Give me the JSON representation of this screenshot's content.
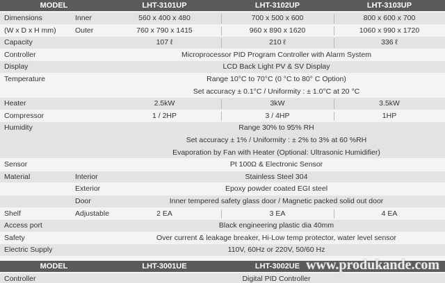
{
  "table": {
    "header": [
      "MODEL",
      "LHT-3101UP",
      "LHT-3102UP",
      "LHT-3103UP"
    ],
    "rows": [
      {
        "label": "Dimensions",
        "sub": "Inner",
        "cells": [
          "560 x 400 x 480",
          "700 x 500 x 600",
          "800 x 600 x 700"
        ]
      },
      {
        "label": "(W x D x H mm)",
        "sub": "Outer",
        "cells": [
          "760 x 790 x 1415",
          "960 x 890 x 1620",
          "1060 x 990 x 1720"
        ]
      },
      {
        "label": "Capacity",
        "cells": [
          "107 ℓ",
          "210 ℓ",
          "336 ℓ"
        ]
      },
      {
        "label": "Controller",
        "lines": [
          "Microprocessor PID Program Controller with Alarm System"
        ]
      },
      {
        "label": "Display",
        "lines": [
          "LCD Back Light PV & SV Display"
        ]
      },
      {
        "label": "Temperature",
        "lines": [
          "Range 10°C to 70°C  (0 °C to 80° C Option)",
          "Set accuracy  ± 0.1°C   /   Uniformity : ± 1.0°C at 20 °C"
        ]
      },
      {
        "label": "Heater",
        "cells": [
          "2.5kW",
          "3kW",
          "3.5kW"
        ]
      },
      {
        "label": "Compressor",
        "cells": [
          "1 / 2HP",
          "3 / 4HP",
          "1HP"
        ]
      },
      {
        "label": "Humidity",
        "lines": [
          "Range 30% to 95% RH",
          "Set accuracy  ± 1% / Uniformity : ± 2% to 3% at 60 %RH",
          "Evaporation by Fan with Heater (Optional: Ultrasonic Humidifier)"
        ]
      },
      {
        "label": "Sensor",
        "lines": [
          "Pt 100Ω & Electronic Sensor"
        ]
      },
      {
        "label": "Material",
        "sub": "Interior",
        "lines": [
          "Stainless Steel 304"
        ]
      },
      {
        "sub": "Exterior",
        "lines": [
          "Epoxy powder coated EGI steel"
        ]
      },
      {
        "sub": "Door",
        "lines": [
          "Inner tempered safety glass door  /  Magnetic packed solid out door"
        ]
      },
      {
        "label": "Shelf",
        "sub": "Adjustable",
        "cells": [
          "2 EA",
          "3 EA",
          "4 EA"
        ]
      },
      {
        "label": "Access port",
        "lines": [
          "Black engineering plastic dia 40mm"
        ]
      },
      {
        "label": "Safety",
        "lines": [
          "Over current & leakage breaker, Hi-Low temp protector, water level sensor"
        ]
      },
      {
        "label": "Electric Supply",
        "lines": [
          "110V, 60Hz or 220V, 50/60 Hz"
        ]
      }
    ]
  },
  "table2": {
    "header": [
      "MODEL",
      "LHT-3001UE",
      "LHT-3002UE"
    ],
    "rows": [
      {
        "label": "Controller",
        "lines": [
          "Digital PID Controller"
        ]
      }
    ]
  },
  "watermark": "www.produkande.com"
}
